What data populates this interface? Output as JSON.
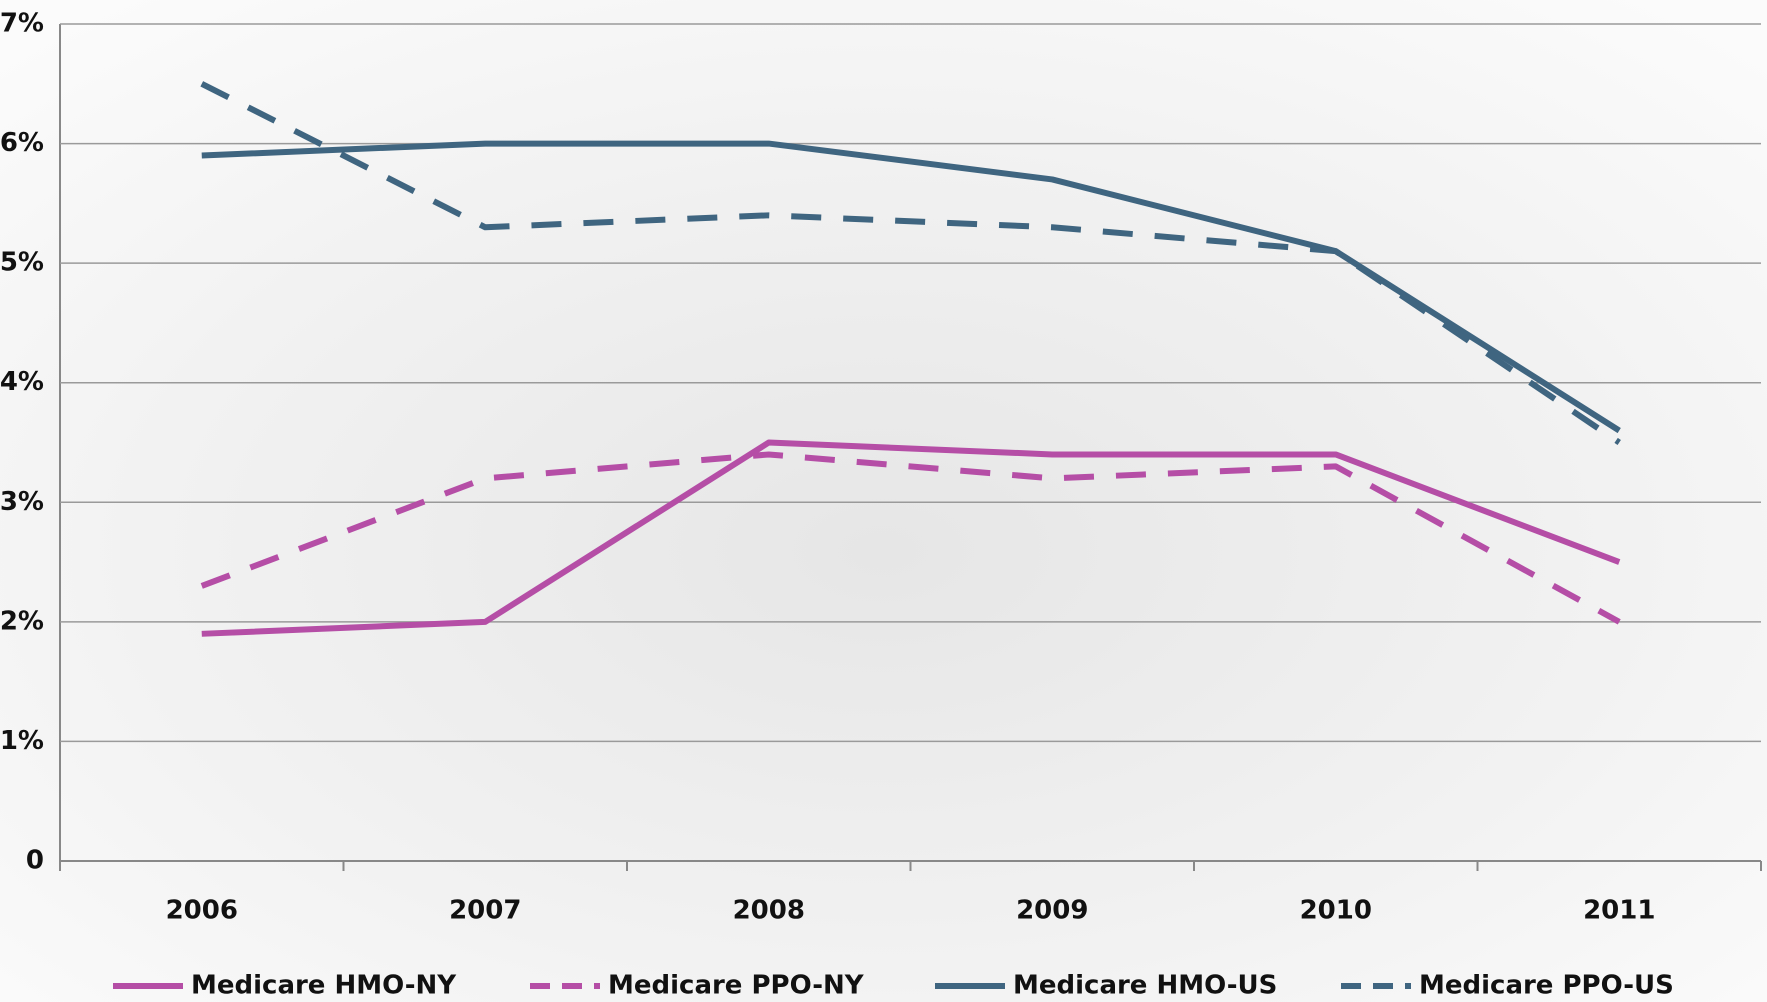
{
  "chart_data": {
    "type": "line",
    "categories": [
      "2006",
      "2007",
      "2008",
      "2009",
      "2010",
      "2011"
    ],
    "series": [
      {
        "name": "Medicare HMO-NY",
        "color": "#b54ea6",
        "dashed": false,
        "values": [
          1.9,
          2.0,
          3.5,
          3.4,
          3.4,
          2.5
        ]
      },
      {
        "name": "Medicare PPO-NY",
        "color": "#b54ea6",
        "dashed": true,
        "values": [
          2.3,
          3.2,
          3.4,
          3.2,
          3.3,
          2.0
        ]
      },
      {
        "name": "Medicare HMO-US",
        "color": "#3f6580",
        "dashed": false,
        "values": [
          5.9,
          6.0,
          6.0,
          5.7,
          5.1,
          3.6
        ]
      },
      {
        "name": "Medicare PPO-US",
        "color": "#3f6580",
        "dashed": true,
        "values": [
          6.5,
          5.3,
          5.4,
          5.3,
          5.1,
          3.5
        ]
      }
    ],
    "ylim": [
      0,
      7
    ],
    "yticks": [
      0,
      {
        "value": 1,
        "label": "1%"
      },
      {
        "value": 2,
        "label": "2%"
      },
      {
        "value": 3,
        "label": "3%"
      },
      {
        "value": 4,
        "label": "4%"
      },
      {
        "value": 5,
        "label": "5%"
      },
      {
        "value": 6,
        "label": "6%"
      },
      {
        "value": 7,
        "label": "7%"
      }
    ],
    "grid": true,
    "legend": "bottom"
  }
}
